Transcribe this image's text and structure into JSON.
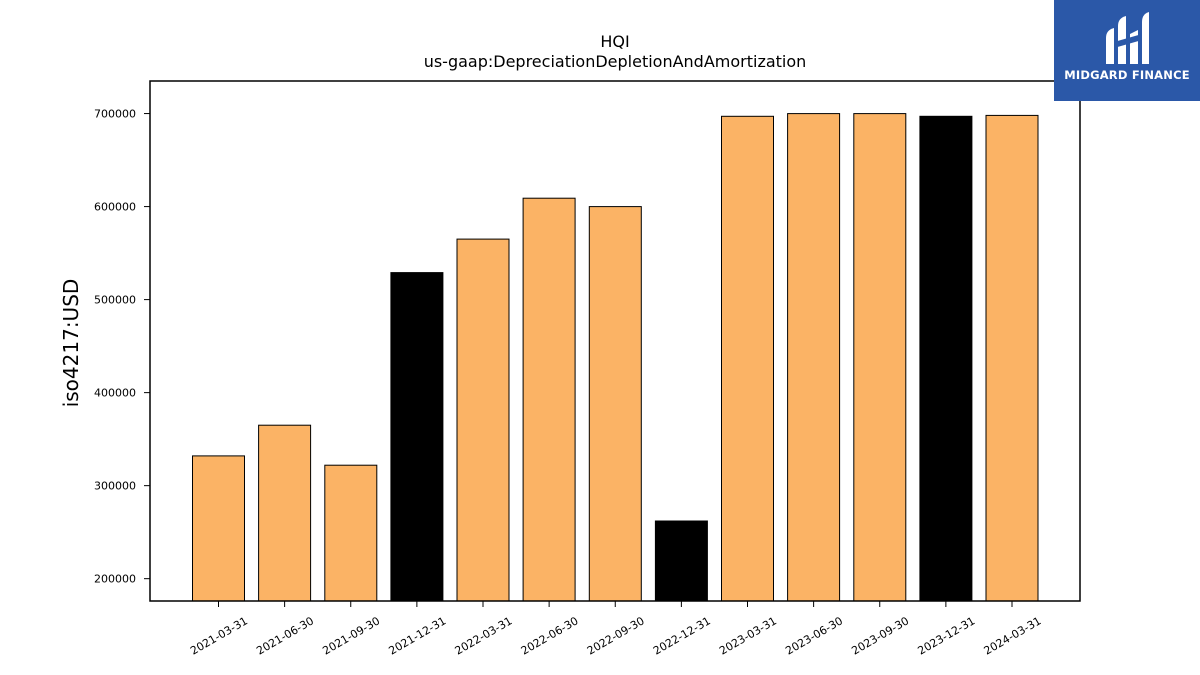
{
  "chart_data": {
    "type": "bar",
    "title": "HQI",
    "subtitle": "us-gaap:DepreciationDepletionAndAmortization",
    "xlabel": "",
    "ylabel": "iso4217:USD",
    "categories": [
      "2021-03-31",
      "2021-06-30",
      "2021-09-30",
      "2021-12-31",
      "2022-03-31",
      "2022-06-30",
      "2022-09-30",
      "2022-12-31",
      "2023-03-31",
      "2023-06-30",
      "2023-09-30",
      "2023-12-31",
      "2024-03-31"
    ],
    "values": [
      332000,
      365000,
      322000,
      529000,
      565000,
      609000,
      600000,
      262000,
      697000,
      700000,
      700000,
      697000,
      698000
    ],
    "bar_colors": [
      "#fbb365",
      "#fbb365",
      "#fbb365",
      "#000000",
      "#fbb365",
      "#fbb365",
      "#fbb365",
      "#000000",
      "#fbb365",
      "#fbb365",
      "#fbb365",
      "#000000",
      "#fbb365"
    ],
    "ylim": [
      176000,
      735000
    ],
    "yticks": [
      200000,
      300000,
      400000,
      500000,
      600000,
      700000
    ],
    "ytick_labels": [
      "200000",
      "300000",
      "400000",
      "500000",
      "600000",
      "700000"
    ],
    "grid": false,
    "legend": "none"
  },
  "logo": {
    "text": "MIDGARD FINANCE",
    "background": "#2b58a8",
    "icon": "midgard-logo-icon"
  }
}
